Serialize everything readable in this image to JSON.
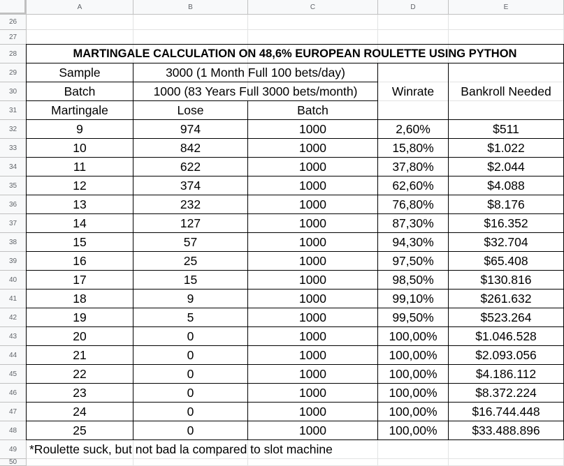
{
  "columns": [
    "A",
    "B",
    "C",
    "D",
    "E"
  ],
  "row_numbers": [
    "26",
    "27",
    "28",
    "29",
    "30",
    "31",
    "32",
    "33",
    "34",
    "35",
    "36",
    "37",
    "38",
    "39",
    "40",
    "41",
    "42",
    "43",
    "44",
    "45",
    "46",
    "47",
    "48",
    "49",
    "50"
  ],
  "title": "MARTINGALE CALCULATION ON 48,6% EUROPEAN ROULETTE USING PYTHON",
  "sample_label": "Sample",
  "sample_value": "3000 (1 Month Full 100 bets/day)",
  "batch_label": "Batch",
  "batch_value": "1000 (83 Years Full 3000 bets/month)",
  "headers": {
    "martingale": "Martingale",
    "lose": "Lose",
    "batch": "Batch",
    "winrate": "Winrate",
    "bankroll": "Bankroll Needed"
  },
  "rows": [
    {
      "martingale": "9",
      "lose": "974",
      "batch": "1000",
      "winrate": "2,60%",
      "bankroll": "$511"
    },
    {
      "martingale": "10",
      "lose": "842",
      "batch": "1000",
      "winrate": "15,80%",
      "bankroll": "$1.022"
    },
    {
      "martingale": "11",
      "lose": "622",
      "batch": "1000",
      "winrate": "37,80%",
      "bankroll": "$2.044"
    },
    {
      "martingale": "12",
      "lose": "374",
      "batch": "1000",
      "winrate": "62,60%",
      "bankroll": "$4.088"
    },
    {
      "martingale": "13",
      "lose": "232",
      "batch": "1000",
      "winrate": "76,80%",
      "bankroll": "$8.176"
    },
    {
      "martingale": "14",
      "lose": "127",
      "batch": "1000",
      "winrate": "87,30%",
      "bankroll": "$16.352"
    },
    {
      "martingale": "15",
      "lose": "57",
      "batch": "1000",
      "winrate": "94,30%",
      "bankroll": "$32.704"
    },
    {
      "martingale": "16",
      "lose": "25",
      "batch": "1000",
      "winrate": "97,50%",
      "bankroll": "$65.408"
    },
    {
      "martingale": "17",
      "lose": "15",
      "batch": "1000",
      "winrate": "98,50%",
      "bankroll": "$130.816"
    },
    {
      "martingale": "18",
      "lose": "9",
      "batch": "1000",
      "winrate": "99,10%",
      "bankroll": "$261.632"
    },
    {
      "martingale": "19",
      "lose": "5",
      "batch": "1000",
      "winrate": "99,50%",
      "bankroll": "$523.264"
    },
    {
      "martingale": "20",
      "lose": "0",
      "batch": "1000",
      "winrate": "100,00%",
      "bankroll": "$1.046.528"
    },
    {
      "martingale": "21",
      "lose": "0",
      "batch": "1000",
      "winrate": "100,00%",
      "bankroll": "$2.093.056"
    },
    {
      "martingale": "22",
      "lose": "0",
      "batch": "1000",
      "winrate": "100,00%",
      "bankroll": "$4.186.112"
    },
    {
      "martingale": "23",
      "lose": "0",
      "batch": "1000",
      "winrate": "100,00%",
      "bankroll": "$8.372.224"
    },
    {
      "martingale": "24",
      "lose": "0",
      "batch": "1000",
      "winrate": "100,00%",
      "bankroll": "$16.744.448"
    },
    {
      "martingale": "25",
      "lose": "0",
      "batch": "1000",
      "winrate": "100,00%",
      "bankroll": "$33.488.896"
    }
  ],
  "footnote": "*Roulette suck, but not bad la compared to slot machine"
}
